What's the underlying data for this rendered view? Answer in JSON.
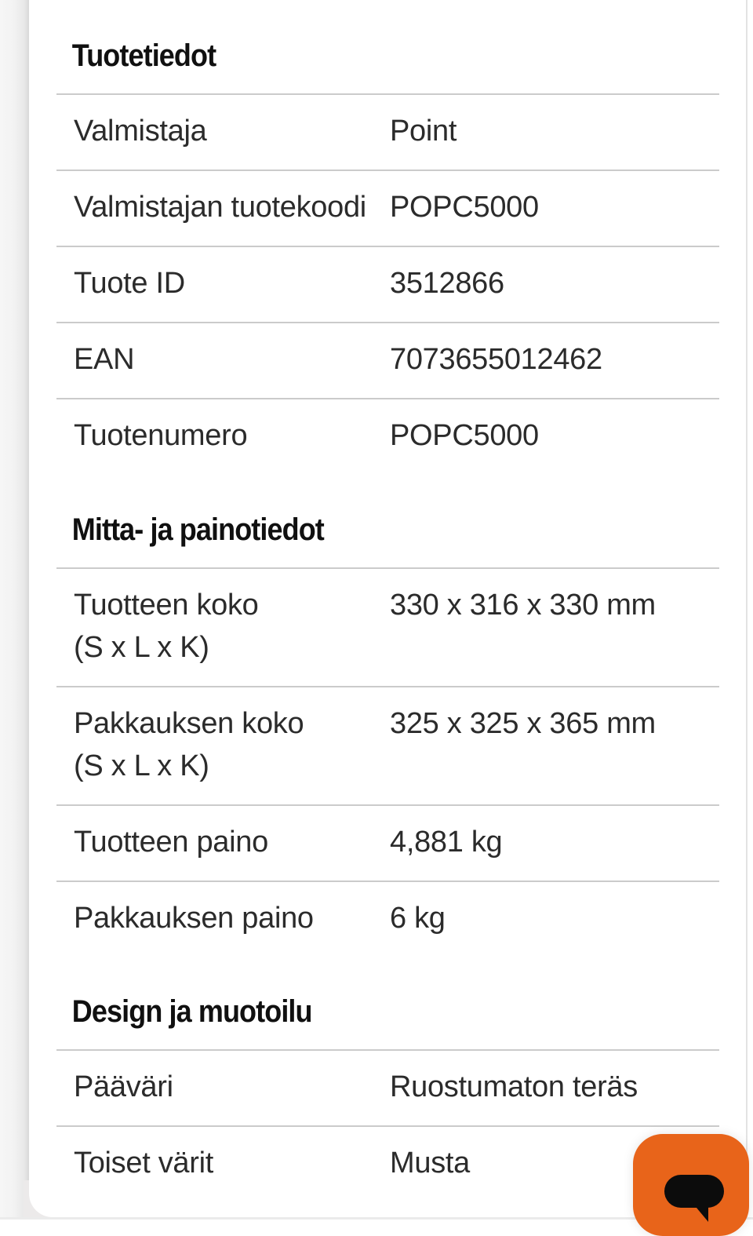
{
  "colors": {
    "accent_orange": "#e8641a",
    "divider_gray": "#cbcbcb",
    "body_text": "#2b2b2b",
    "heading_text": "#101010",
    "chat_icon_black": "#0c0c0c"
  },
  "sections": [
    {
      "title": "Tuotetiedot",
      "rows": [
        {
          "label": "Valmistaja",
          "value": "Point"
        },
        {
          "label": "Valmistajan tuotekoodi",
          "value": "POPC5000"
        },
        {
          "label": "Tuote ID",
          "value": "3512866"
        },
        {
          "label": "EAN",
          "value": "7073655012462"
        },
        {
          "label": "Tuotenumero",
          "value": "POPC5000"
        }
      ]
    },
    {
      "title": "Mitta- ja painotiedot",
      "rows": [
        {
          "label": "Tuotteen koko",
          "label2": "(S x L x K)",
          "value": "330 x 316 x 330 mm"
        },
        {
          "label": "Pakkauksen koko",
          "label2": "(S x L x K)",
          "value": "325 x 325 x 365 mm"
        },
        {
          "label": "Tuotteen paino",
          "value": "4,881 kg"
        },
        {
          "label": "Pakkauksen paino",
          "value": "6 kg"
        }
      ]
    },
    {
      "title": "Design ja muotoilu",
      "rows": [
        {
          "label": "Pääväri",
          "value": "Ruostumaton teräs"
        },
        {
          "label": "Toiset värit",
          "value": "Musta"
        }
      ]
    }
  ],
  "chat_button": {
    "icon": "chat-bubble-icon"
  }
}
